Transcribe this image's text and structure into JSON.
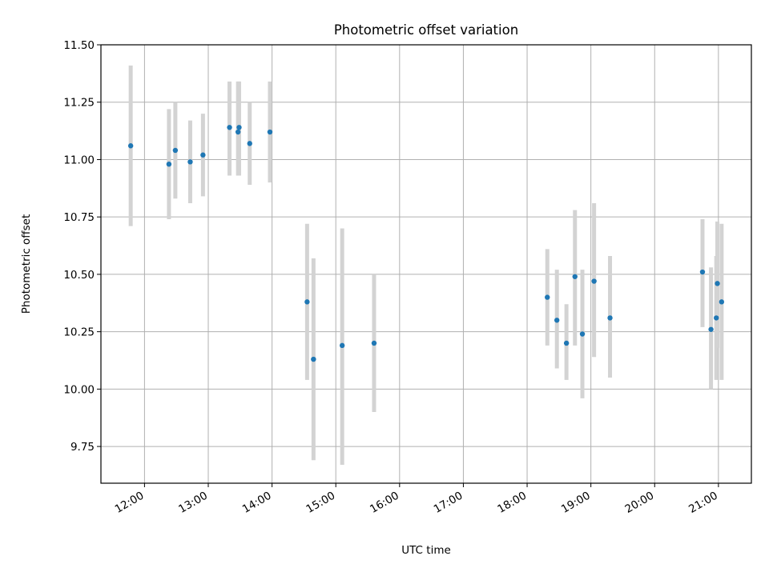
{
  "chart_data": {
    "type": "scatter",
    "title": "Photometric offset variation",
    "xlabel": "UTC time",
    "ylabel": "Photometric offset",
    "x_tick_labels": [
      "12:00",
      "13:00",
      "14:00",
      "15:00",
      "16:00",
      "17:00",
      "18:00",
      "19:00",
      "20:00",
      "21:00"
    ],
    "y_ticks": [
      9.75,
      10.0,
      10.25,
      10.5,
      10.75,
      11.0,
      11.25,
      11.5
    ],
    "y_tick_labels": [
      "9.75",
      "10.00",
      "10.25",
      "10.50",
      "10.75",
      "11.00",
      "11.25",
      "11.50"
    ],
    "xlim": [
      "11:19",
      "21:31"
    ],
    "ylim": [
      9.59,
      11.5
    ],
    "grid": true,
    "point_color": "#1f77b4",
    "errorbar_color": "#d3d3d3",
    "points": [
      {
        "x": "11:47",
        "y": 11.06,
        "yerr_low": 10.71,
        "yerr_high": 11.41
      },
      {
        "x": "12:23",
        "y": 10.98,
        "yerr_low": 10.74,
        "yerr_high": 11.22
      },
      {
        "x": "12:29",
        "y": 11.04,
        "yerr_low": 10.83,
        "yerr_high": 11.25
      },
      {
        "x": "12:43",
        "y": 10.99,
        "yerr_low": 10.81,
        "yerr_high": 11.17
      },
      {
        "x": "12:55",
        "y": 11.02,
        "yerr_low": 10.84,
        "yerr_high": 11.2
      },
      {
        "x": "13:20",
        "y": 11.14,
        "yerr_low": 10.93,
        "yerr_high": 11.34
      },
      {
        "x": "13:28",
        "y": 11.12,
        "yerr_low": 10.93,
        "yerr_high": 11.34
      },
      {
        "x": "13:29",
        "y": 11.14,
        "yerr_low": 10.93,
        "yerr_high": 11.34
      },
      {
        "x": "13:39",
        "y": 11.07,
        "yerr_low": 10.89,
        "yerr_high": 11.25
      },
      {
        "x": "13:58",
        "y": 11.12,
        "yerr_low": 10.9,
        "yerr_high": 11.34
      },
      {
        "x": "14:33",
        "y": 10.38,
        "yerr_low": 10.04,
        "yerr_high": 10.72
      },
      {
        "x": "14:39",
        "y": 10.13,
        "yerr_low": 9.69,
        "yerr_high": 10.57
      },
      {
        "x": "15:06",
        "y": 10.19,
        "yerr_low": 9.67,
        "yerr_high": 10.7
      },
      {
        "x": "15:36",
        "y": 10.2,
        "yerr_low": 9.9,
        "yerr_high": 10.5
      },
      {
        "x": "18:19",
        "y": 10.4,
        "yerr_low": 10.19,
        "yerr_high": 10.61
      },
      {
        "x": "18:28",
        "y": 10.3,
        "yerr_low": 10.09,
        "yerr_high": 10.52
      },
      {
        "x": "18:37",
        "y": 10.2,
        "yerr_low": 10.04,
        "yerr_high": 10.37
      },
      {
        "x": "18:45",
        "y": 10.49,
        "yerr_low": 10.19,
        "yerr_high": 10.78
      },
      {
        "x": "18:52",
        "y": 10.24,
        "yerr_low": 9.96,
        "yerr_high": 10.52
      },
      {
        "x": "19:03",
        "y": 10.47,
        "yerr_low": 10.14,
        "yerr_high": 10.81
      },
      {
        "x": "19:18",
        "y": 10.31,
        "yerr_low": 10.05,
        "yerr_high": 10.58
      },
      {
        "x": "20:45",
        "y": 10.51,
        "yerr_low": 10.27,
        "yerr_high": 10.74
      },
      {
        "x": "20:53",
        "y": 10.26,
        "yerr_low": 10.0,
        "yerr_high": 10.53
      },
      {
        "x": "20:58",
        "y": 10.31,
        "yerr_low": 10.04,
        "yerr_high": 10.58
      },
      {
        "x": "20:59",
        "y": 10.46,
        "yerr_low": 10.18,
        "yerr_high": 10.73
      },
      {
        "x": "21:03",
        "y": 10.38,
        "yerr_low": 10.04,
        "yerr_high": 10.72
      }
    ]
  }
}
